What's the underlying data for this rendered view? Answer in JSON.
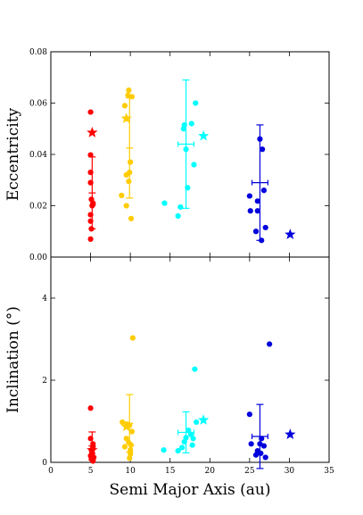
{
  "chart_data": [
    {
      "type": "scatter",
      "xlabel": "",
      "ylabel": "Eccentricity",
      "xlim": [
        0,
        35
      ],
      "ylim": [
        0,
        0.08
      ],
      "xticks": [],
      "yticks": [
        {
          "value": 0.0,
          "label": "0.00"
        },
        {
          "value": 0.02,
          "label": "0.02"
        },
        {
          "value": 0.04,
          "label": "0.04"
        },
        {
          "value": 0.06,
          "label": "0.06"
        },
        {
          "value": 0.08,
          "label": "0.08"
        }
      ],
      "groups": [
        {
          "color": "#ff0000",
          "points": [
            [
              5.0,
              0.0565
            ],
            [
              5.0,
              0.0398
            ],
            [
              5.0,
              0.033
            ],
            [
              5.0,
              0.029
            ],
            [
              5.1,
              0.0225
            ],
            [
              5.3,
              0.021
            ],
            [
              5.3,
              0.0205
            ],
            [
              5.2,
              0.02
            ],
            [
              5.0,
              0.0165
            ],
            [
              5.0,
              0.014
            ],
            [
              5.1,
              0.011
            ],
            [
              5.0,
              0.007
            ]
          ],
          "mean": {
            "x": 5.2,
            "y": 0.025,
            "xerr": 0.0,
            "yerr": 0.014
          },
          "star": [
            5.2,
            0.0485
          ]
        },
        {
          "color": "#ffcc00",
          "points": [
            [
              9.8,
              0.065
            ],
            [
              9.7,
              0.063
            ],
            [
              10.2,
              0.0625
            ],
            [
              9.3,
              0.059
            ],
            [
              10.0,
              0.037
            ],
            [
              9.9,
              0.033
            ],
            [
              9.5,
              0.032
            ],
            [
              9.8,
              0.0295
            ],
            [
              8.9,
              0.024
            ],
            [
              9.5,
              0.02
            ],
            [
              10.1,
              0.015
            ]
          ],
          "mean": {
            "x": 9.9,
            "y": 0.0425,
            "xerr": 0.0,
            "yerr": 0.0195
          },
          "star": [
            9.5,
            0.054
          ]
        },
        {
          "color": "#00ffff",
          "points": [
            [
              18.2,
              0.06
            ],
            [
              17.7,
              0.052
            ],
            [
              16.8,
              0.0515
            ],
            [
              16.7,
              0.05
            ],
            [
              17.0,
              0.042
            ],
            [
              18.0,
              0.036
            ],
            [
              17.2,
              0.027
            ],
            [
              14.3,
              0.021
            ],
            [
              16.3,
              0.0195
            ],
            [
              16.0,
              0.016
            ]
          ],
          "mean": {
            "x": 17.0,
            "y": 0.044,
            "xerr": 1.0,
            "yerr": 0.025
          },
          "star": [
            19.2,
            0.0472
          ]
        },
        {
          "color": "#0000dd",
          "points": [
            [
              26.3,
              0.046
            ],
            [
              26.6,
              0.042
            ],
            [
              26.8,
              0.026
            ],
            [
              25.0,
              0.0238
            ],
            [
              26.0,
              0.0218
            ],
            [
              25.1,
              0.018
            ],
            [
              26.0,
              0.018
            ],
            [
              27.0,
              0.0115
            ],
            [
              25.8,
              0.01
            ],
            [
              26.5,
              0.0065
            ]
          ],
          "mean": {
            "x": 26.3,
            "y": 0.029,
            "xerr": 1.0,
            "yerr": 0.0225
          },
          "star": [
            30.1,
            0.0088
          ]
        }
      ]
    },
    {
      "type": "scatter",
      "xlabel": "Semi Major Axis (au)",
      "ylabel": "Inclination (°)",
      "xlim": [
        0,
        35
      ],
      "ylim": [
        0,
        5
      ],
      "xticks": [
        {
          "value": 0,
          "label": "0"
        },
        {
          "value": 5,
          "label": "5"
        },
        {
          "value": 10,
          "label": "10"
        },
        {
          "value": 15,
          "label": "15"
        },
        {
          "value": 20,
          "label": "20"
        },
        {
          "value": 25,
          "label": "25"
        },
        {
          "value": 30,
          "label": "30"
        },
        {
          "value": 35,
          "label": "35"
        }
      ],
      "yticks": [
        {
          "value": 0,
          "label": "0"
        },
        {
          "value": 2,
          "label": "2"
        },
        {
          "value": 4,
          "label": "4"
        }
      ],
      "groups": [
        {
          "color": "#ff0000",
          "points": [
            [
              5.0,
              1.32
            ],
            [
              5.0,
              0.58
            ],
            [
              5.3,
              0.45
            ],
            [
              5.3,
              0.38
            ],
            [
              5.1,
              0.3
            ],
            [
              5.2,
              0.22
            ],
            [
              5.0,
              0.16
            ],
            [
              5.4,
              0.12
            ],
            [
              5.1,
              0.08
            ],
            [
              5.3,
              0.03
            ]
          ],
          "mean": {
            "x": 5.2,
            "y": 0.4,
            "xerr": 0.0,
            "yerr": 0.34
          },
          "star": [
            5.2,
            0.3
          ]
        },
        {
          "color": "#ffcc00",
          "points": [
            [
              10.3,
              3.03
            ],
            [
              9.0,
              0.98
            ],
            [
              9.6,
              0.93
            ],
            [
              9.9,
              0.9
            ],
            [
              10.2,
              0.75
            ],
            [
              9.5,
              0.58
            ],
            [
              9.8,
              0.48
            ],
            [
              10.1,
              0.42
            ],
            [
              9.3,
              0.38
            ],
            [
              10.0,
              0.3
            ],
            [
              10.0,
              0.2
            ],
            [
              9.9,
              0.1
            ]
          ],
          "mean": {
            "x": 9.9,
            "y": 0.95,
            "xerr": 0.0,
            "yerr": 0.7
          },
          "star": [
            9.5,
            0.87
          ]
        },
        {
          "color": "#00ffff",
          "points": [
            [
              18.1,
              2.27
            ],
            [
              18.3,
              0.98
            ],
            [
              17.3,
              0.78
            ],
            [
              17.6,
              0.68
            ],
            [
              17.0,
              0.6
            ],
            [
              17.9,
              0.58
            ],
            [
              16.8,
              0.5
            ],
            [
              17.8,
              0.42
            ],
            [
              16.5,
              0.36
            ],
            [
              14.2,
              0.3
            ],
            [
              16.0,
              0.28
            ]
          ],
          "mean": {
            "x": 17.0,
            "y": 0.73,
            "xerr": 1.0,
            "yerr": 0.5
          },
          "star": [
            19.2,
            1.03
          ]
        },
        {
          "color": "#0000dd",
          "points": [
            [
              27.5,
              2.88
            ],
            [
              25.0,
              1.17
            ],
            [
              26.5,
              0.58
            ],
            [
              26.3,
              0.45
            ],
            [
              25.2,
              0.45
            ],
            [
              26.8,
              0.4
            ],
            [
              26.0,
              0.28
            ],
            [
              26.4,
              0.22
            ],
            [
              25.8,
              0.18
            ],
            [
              27.0,
              0.12
            ]
          ],
          "mean": {
            "x": 26.3,
            "y": 0.63,
            "xerr": 1.0,
            "yerr": 0.78
          },
          "star": [
            30.1,
            0.68
          ]
        }
      ]
    }
  ]
}
